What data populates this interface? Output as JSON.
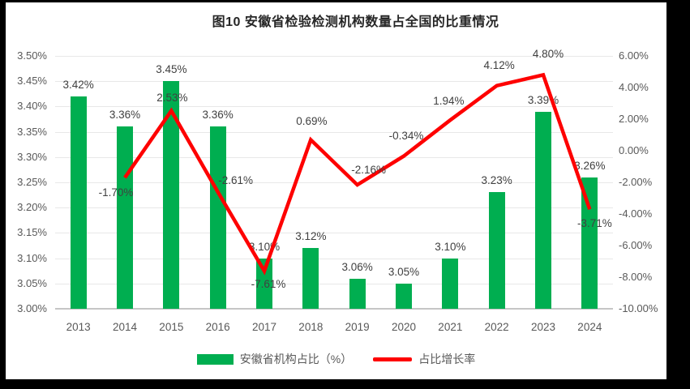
{
  "title": "图10 安徽省检验检测机构数量占全国的比重情况",
  "colors": {
    "bar": "#00AE50",
    "line": "#FE0000",
    "grid": "#E8E8E8",
    "axis_line": "#C6C6C6",
    "tick_text": "#595959",
    "data_label_text": "#404040",
    "title_text": "#262626",
    "frame": "#000000"
  },
  "chart_data": {
    "type": "combo-bar-line",
    "title": "图10 安徽省检验检测机构数量占全国的比重情况",
    "categories": [
      "2013",
      "2014",
      "2015",
      "2016",
      "2017",
      "2018",
      "2019",
      "2020",
      "2021",
      "2022",
      "2023",
      "2024"
    ],
    "series": [
      {
        "name": "安徽省机构占比（%）",
        "type": "bar",
        "axis": "left",
        "values": [
          3.42,
          3.36,
          3.45,
          3.36,
          3.1,
          3.12,
          3.06,
          3.05,
          3.1,
          3.23,
          3.39,
          3.26
        ],
        "labels": [
          "3.42%",
          "3.36%",
          "3.45%",
          "3.36%",
          "3.10%",
          "3.12%",
          "3.06%",
          "3.05%",
          "3.10%",
          "3.23%",
          "3.39%",
          "3.26%"
        ]
      },
      {
        "name": "占比增长率",
        "type": "line",
        "axis": "right",
        "values": [
          null,
          -1.7,
          2.53,
          -2.61,
          -7.61,
          0.69,
          -2.16,
          -0.34,
          1.94,
          4.12,
          4.8,
          -3.71
        ],
        "labels": [
          null,
          "-1.70%",
          "2.53%",
          "-2.61%",
          "-7.61%",
          "0.69%",
          "-2.16%",
          "-0.34%",
          "1.94%",
          "4.12%",
          "4.80%",
          "-3.71%"
        ],
        "label_offsets": [
          null,
          [
            -11,
            19
          ],
          [
            1,
            -16
          ],
          [
            22,
            -14
          ],
          [
            5,
            17
          ],
          [
            1,
            -23
          ],
          [
            14,
            -18
          ],
          [
            3,
            -25
          ],
          [
            -2,
            -23
          ],
          [
            3,
            -25
          ],
          [
            6,
            -25
          ],
          [
            6,
            18
          ]
        ]
      }
    ],
    "left_axis": {
      "min": 3.0,
      "max": 3.5,
      "step": 0.05,
      "tick_labels": [
        "3.50%",
        "3.45%",
        "3.40%",
        "3.35%",
        "3.30%",
        "3.25%",
        "3.20%",
        "3.15%",
        "3.10%",
        "3.05%",
        "3.00%"
      ]
    },
    "right_axis": {
      "min": -10.0,
      "max": 6.0,
      "step": 2.0,
      "tick_labels": [
        "6.00%",
        "4.00%",
        "2.00%",
        "0.00%",
        "-2.00%",
        "-4.00%",
        "-6.00%",
        "-8.00%",
        "-10.00%"
      ]
    },
    "grid": true,
    "legend_position": "bottom",
    "legend": [
      {
        "label": "安徽省机构占比（%）",
        "swatch": "bar"
      },
      {
        "label": "占比增长率",
        "swatch": "line"
      }
    ]
  }
}
